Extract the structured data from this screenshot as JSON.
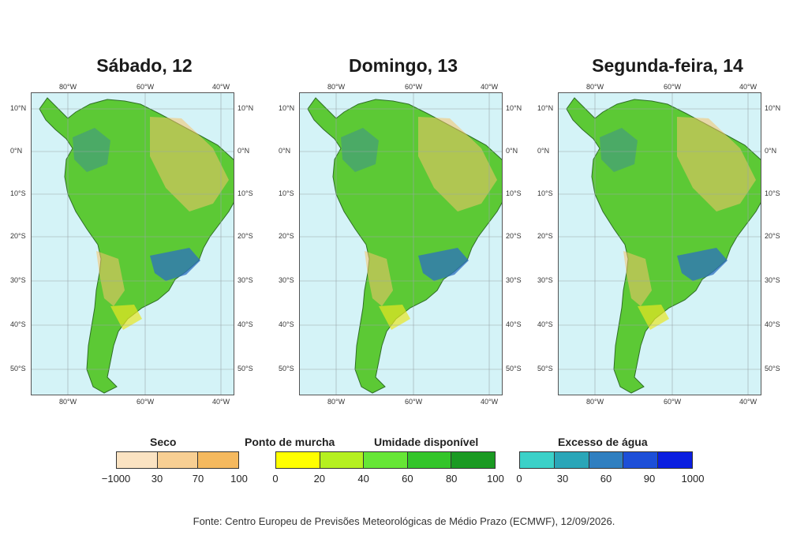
{
  "panels": [
    {
      "title": "Sábado, 12"
    },
    {
      "title": "Domingo, 13"
    },
    {
      "title": "Segunda-feira, 14"
    }
  ],
  "lon_labels": [
    "80°W",
    "60°W",
    "40°W"
  ],
  "lat_labels": [
    "10°N",
    "0°N",
    "10°S",
    "20°S",
    "30°S",
    "40°S",
    "50°S"
  ],
  "legend": {
    "seco": {
      "title": "Seco",
      "ticks": [
        "−1000",
        "30",
        "70",
        "100"
      ],
      "colors": [
        "#fbe3c2",
        "#f8cf93",
        "#f5b95e"
      ]
    },
    "ponto_title": "Ponto de murcha",
    "umidade": {
      "title": "Umidade disponível",
      "ticks": [
        "0",
        "20",
        "40",
        "60",
        "80",
        "100"
      ],
      "colors": [
        "#ffff00",
        "#b5f020",
        "#66e636",
        "#33c52a",
        "#1a9a22"
      ]
    },
    "excesso": {
      "title": "Excesso de água",
      "ticks": [
        "0",
        "30",
        "60",
        "90",
        "1000"
      ],
      "colors": [
        "#3bd1c8",
        "#2aa6b8",
        "#2f7fc0",
        "#1d4fd8",
        "#0a1ee0"
      ]
    }
  },
  "colors": {
    "ocean": "#d4f3f7",
    "land_base": "#5cc935",
    "dry": "#f5c26a",
    "yellow": "#e8e624",
    "wet": "#2b6fc2"
  },
  "source": "Fonte: Centro Europeu de Previsões Meteorológicas de Médio Prazo (ECMWF), 12/09/2026."
}
